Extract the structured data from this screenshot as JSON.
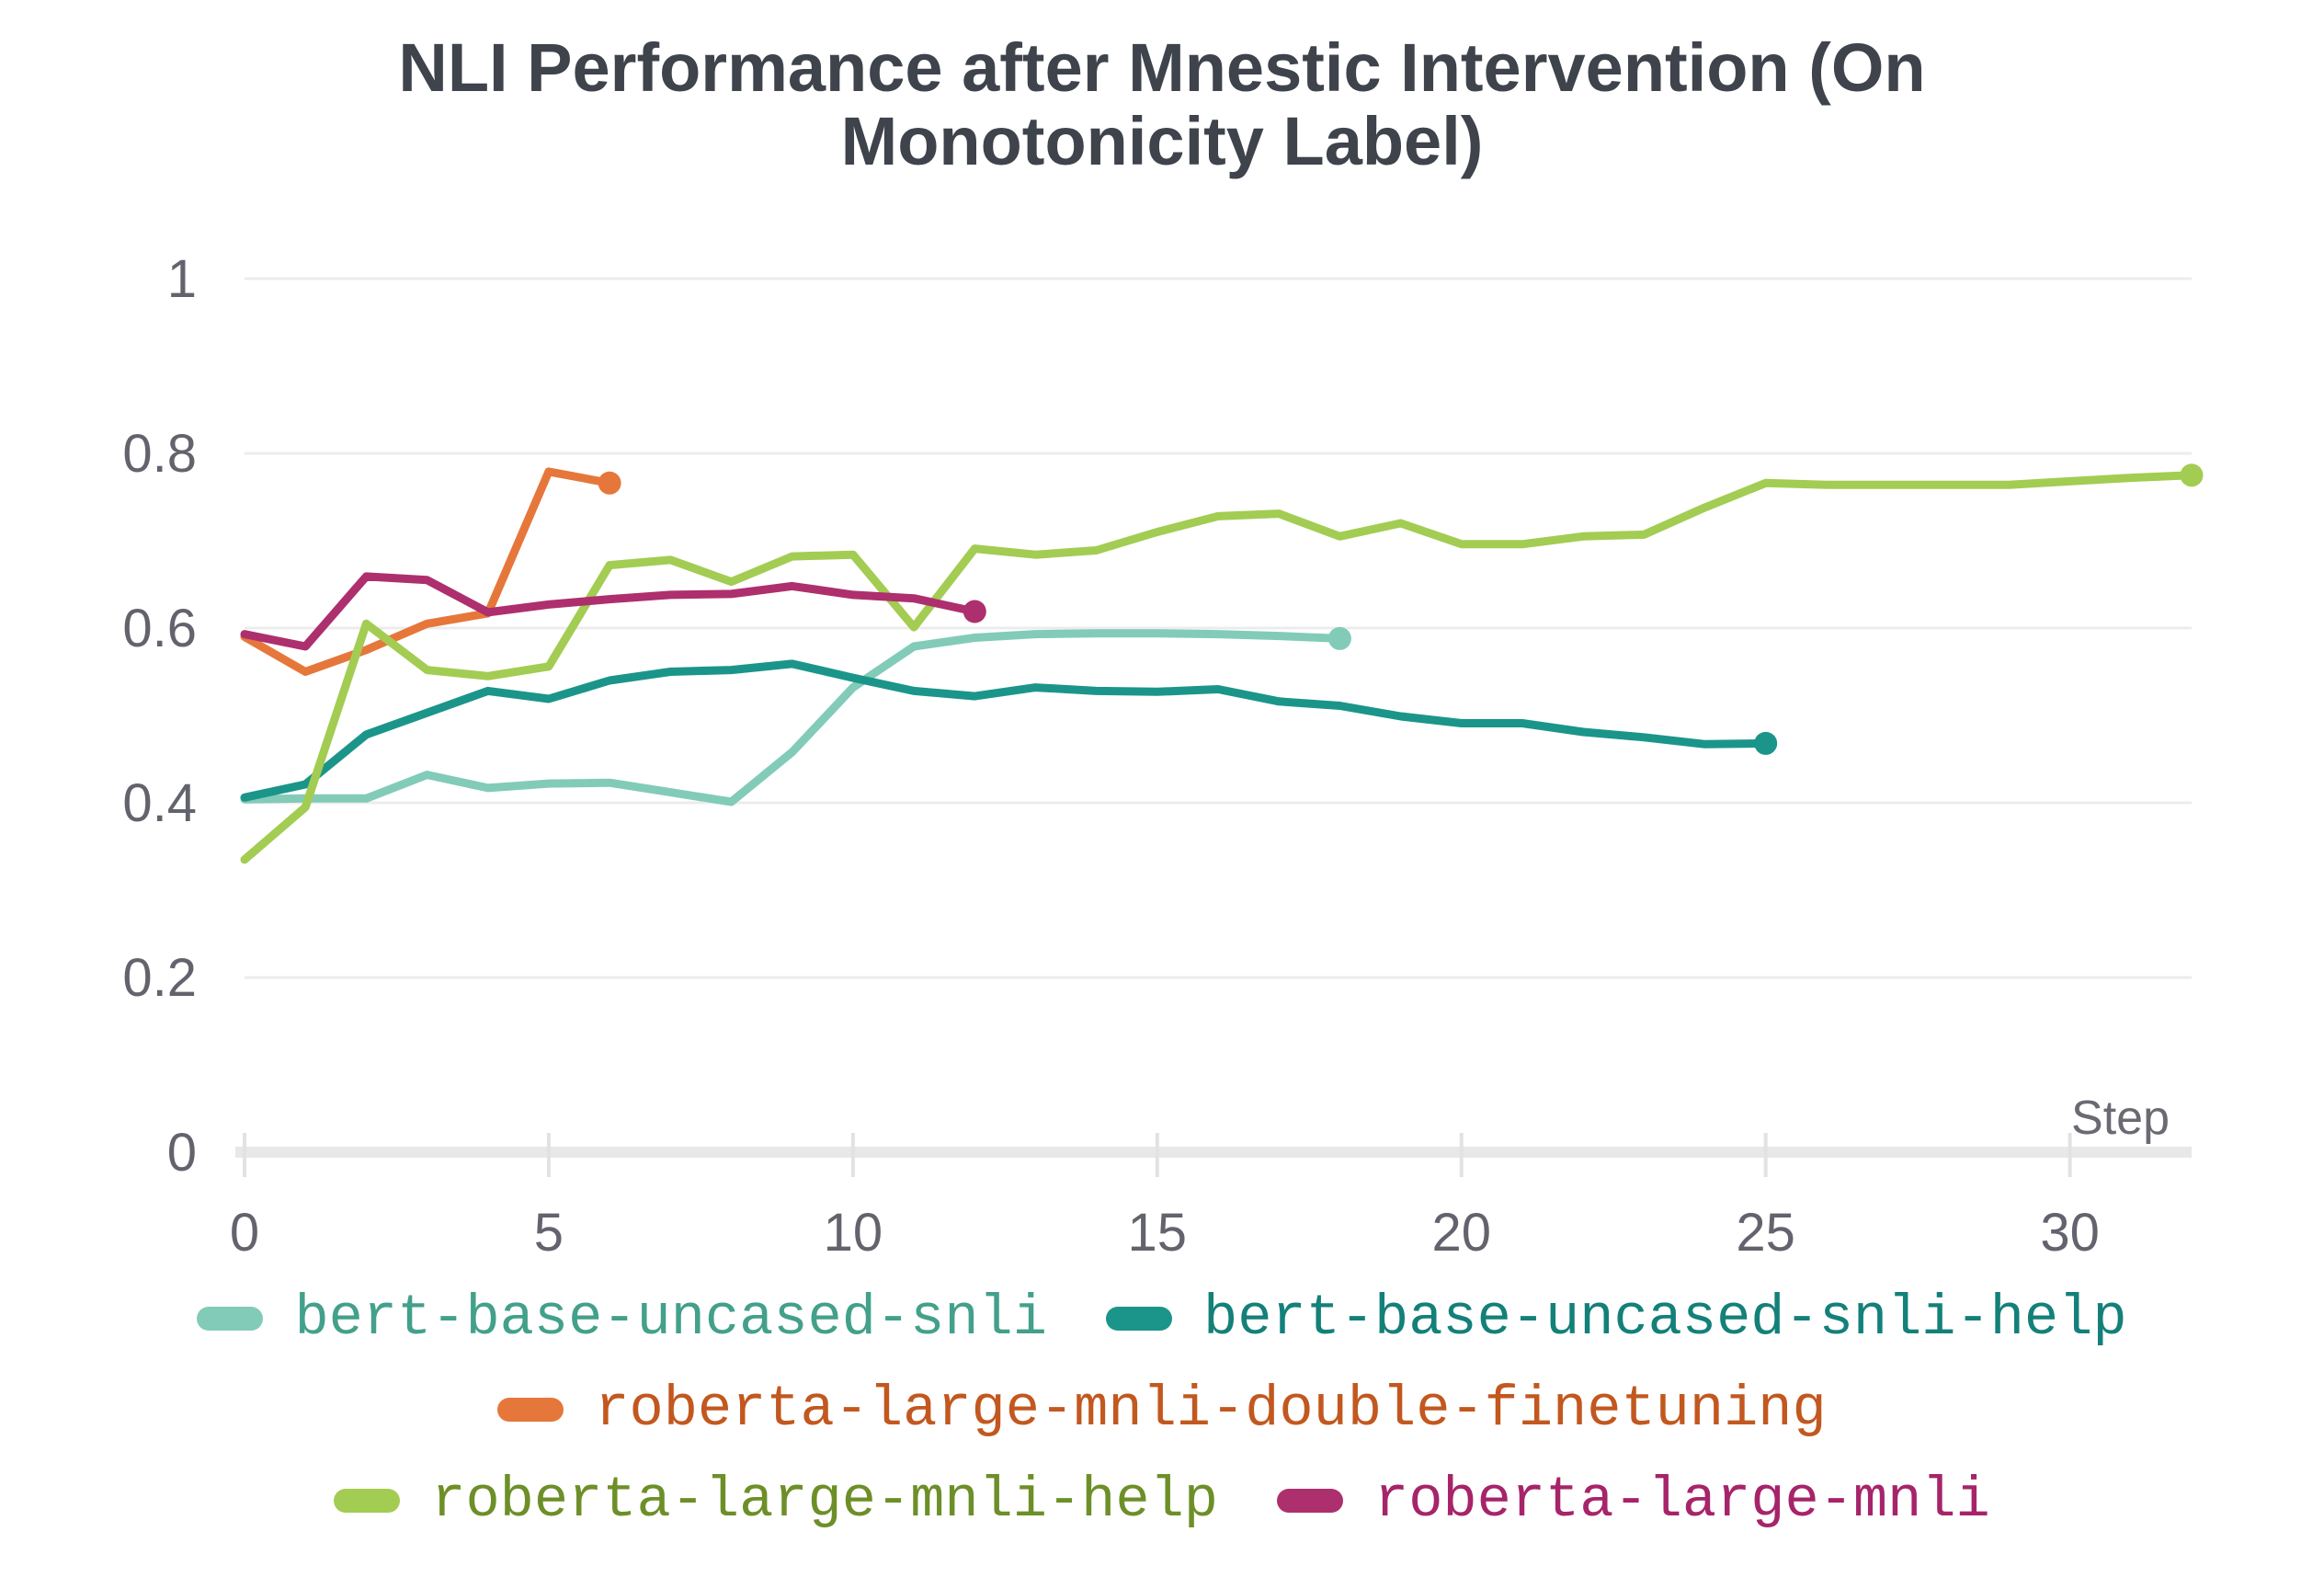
{
  "title": "NLI Performance after Mnestic Intervention (On Monotonicity Label)",
  "title_line1": "NLI Performance after Mnestic Intervention (On",
  "title_line2": "Monotonicity Label)",
  "chart_data": {
    "type": "line",
    "title": "NLI Performance after Mnestic Intervention (On Monotonicity Label)",
    "xlabel": "Step",
    "ylabel": "",
    "xlim": [
      0,
      32
    ],
    "ylim": [
      0,
      1
    ],
    "x_ticks": [
      0,
      5,
      10,
      15,
      20,
      25,
      30
    ],
    "x_tick_labels": [
      "0",
      "5",
      "10",
      "15",
      "20",
      "25",
      "30"
    ],
    "y_ticks": [
      0,
      0.2,
      0.4,
      0.6,
      0.8,
      1
    ],
    "y_tick_labels": [
      "0",
      "0.2",
      "0.4",
      "0.6",
      "0.8",
      "1"
    ],
    "grid": true,
    "legend_position": "bottom",
    "colors": {
      "grid": "#ececec",
      "axis_line": "#e8e8e8",
      "tick_mark": "#e2e2e2",
      "tick_label": "#63636d",
      "axis_title": "#6a6a72",
      "title_text": "#3e434c"
    },
    "series": [
      {
        "name": "bert-base-uncased-snli",
        "color": "#82cbb8",
        "text_color": "#43a08a",
        "x": [
          0,
          1,
          2,
          3,
          4,
          5,
          6,
          7,
          8,
          9,
          10,
          11,
          12,
          13,
          14,
          15,
          16,
          17,
          18
        ],
        "values": [
          0.404,
          0.405,
          0.405,
          0.432,
          0.417,
          0.422,
          0.423,
          0.412,
          0.401,
          0.458,
          0.532,
          0.579,
          0.589,
          0.593,
          0.594,
          0.594,
          0.593,
          0.591,
          0.588
        ]
      },
      {
        "name": "bert-base-uncased-snli-help",
        "color": "#1b958a",
        "text_color": "#14807a",
        "x": [
          0,
          1,
          2,
          3,
          4,
          5,
          6,
          7,
          8,
          9,
          10,
          11,
          12,
          13,
          14,
          15,
          16,
          17,
          18,
          19,
          20,
          21,
          22,
          23,
          24,
          25
        ],
        "values": [
          0.406,
          0.421,
          0.478,
          0.503,
          0.528,
          0.519,
          0.54,
          0.55,
          0.552,
          0.559,
          0.543,
          0.528,
          0.522,
          0.532,
          0.528,
          0.527,
          0.53,
          0.516,
          0.511,
          0.499,
          0.491,
          0.491,
          0.481,
          0.475,
          0.467,
          0.468
        ]
      },
      {
        "name": "roberta-large-mnli-double-finetuning",
        "color": "#e6773a",
        "text_color": "#c2581f",
        "x": [
          0,
          1,
          2,
          3,
          4,
          5,
          6
        ],
        "values": [
          0.59,
          0.55,
          0.575,
          0.605,
          0.617,
          0.779,
          0.766
        ]
      },
      {
        "name": "roberta-large-mnli-help",
        "color": "#a3cc53",
        "text_color": "#6d8f28",
        "x": [
          0,
          1,
          2,
          3,
          4,
          5,
          6,
          7,
          8,
          9,
          10,
          11,
          12,
          13,
          14,
          15,
          16,
          17,
          18,
          19,
          20,
          21,
          22,
          23,
          24,
          25,
          26,
          27,
          28,
          29,
          30,
          31,
          32
        ],
        "values": [
          0.335,
          0.395,
          0.605,
          0.552,
          0.545,
          0.556,
          0.672,
          0.678,
          0.653,
          0.682,
          0.684,
          0.601,
          0.691,
          0.684,
          0.689,
          0.71,
          0.728,
          0.731,
          0.705,
          0.72,
          0.696,
          0.696,
          0.705,
          0.707,
          0.738,
          0.766,
          0.764,
          0.764,
          0.764,
          0.764,
          0.768,
          0.772,
          0.775
        ]
      },
      {
        "name": "roberta-large-mnli",
        "color": "#ae2f6d",
        "text_color": "#a6246a",
        "x": [
          0,
          1,
          2,
          3,
          4,
          5,
          6,
          7,
          8,
          9,
          10,
          11,
          12
        ],
        "values": [
          0.593,
          0.579,
          0.659,
          0.655,
          0.618,
          0.627,
          0.633,
          0.638,
          0.639,
          0.648,
          0.638,
          0.634,
          0.619
        ]
      }
    ]
  },
  "legend": {
    "rows": [
      [
        0,
        1
      ],
      [
        2
      ],
      [
        3,
        4
      ]
    ]
  }
}
